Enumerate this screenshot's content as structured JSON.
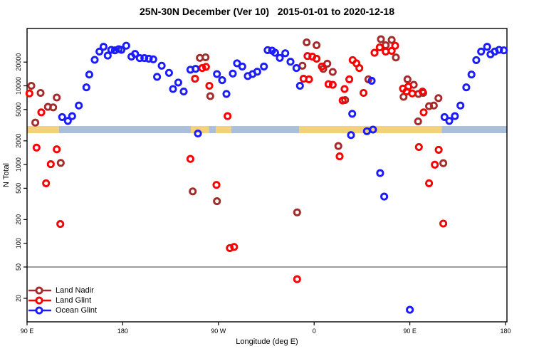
{
  "title": "25N-30N December (Ver 10)   2015-01-01 to 2020-12-18",
  "chart_data": {
    "type": "scatter",
    "title": "25N-30N December (Ver 10)   2015-01-01 to 2020-12-18",
    "xlabel": "Longitude (deg E)",
    "ylabel": "N Total",
    "x_axis": {
      "range_deg_continuous": [
        90,
        541
      ],
      "ticks": [
        {
          "lon": 90,
          "label": "90 E"
        },
        {
          "lon": 180,
          "label": "180"
        },
        {
          "lon": 270,
          "label": "90 W"
        },
        {
          "lon": 360,
          "label": "0"
        },
        {
          "lon": 450,
          "label": "90 E"
        },
        {
          "lon": 540,
          "label": "180"
        }
      ]
    },
    "y_axis": {
      "scale": "log10",
      "ticks": [
        20000,
        10000,
        5000,
        2000,
        1000,
        500,
        200,
        100,
        50,
        20
      ],
      "range": [
        10,
        53000
      ]
    },
    "grid": false,
    "legend_position": "bottom-left",
    "reference_line_n": 50,
    "reference_line_color": "#8f8f8f",
    "surface_band": {
      "comment": "land/ocean strip drawn across plot near N=2500-3100",
      "n_top": 3080,
      "n_bottom": 2500,
      "land_color": "#f2d07c",
      "ocean_color": "#a9bfd9",
      "segments": [
        {
          "type": "land",
          "lon_start": 90,
          "lon_end": 120
        },
        {
          "type": "ocean",
          "lon_start": 120,
          "lon_end": 244
        },
        {
          "type": "land",
          "lon_start": 244,
          "lon_end": 261
        },
        {
          "type": "ocean",
          "lon_start": 261,
          "lon_end": 267.5
        },
        {
          "type": "land",
          "lon_start": 267.5,
          "lon_end": 282
        },
        {
          "type": "ocean",
          "lon_start": 282,
          "lon_end": 346
        },
        {
          "type": "land",
          "lon_start": 346,
          "lon_end": 480
        },
        {
          "type": "ocean",
          "lon_start": 480,
          "lon_end": 541
        }
      ]
    },
    "series": [
      {
        "name": "Land Nadir",
        "color": "#A52A2A",
        "points": [
          [
            94.0,
            10000
          ],
          [
            102.7,
            8120
          ],
          [
            117.9,
            7090
          ],
          [
            109.6,
            5400
          ],
          [
            114.6,
            5320
          ],
          [
            97.8,
            3410
          ],
          [
            121.7,
            1050
          ],
          [
            252.5,
            22600
          ],
          [
            257.9,
            23000
          ],
          [
            262.3,
            7390
          ],
          [
            245.8,
            456
          ],
          [
            268.6,
            342
          ],
          [
            349.0,
            18000
          ],
          [
            353.0,
            35600
          ],
          [
            362.3,
            32800
          ],
          [
            368.6,
            16400
          ],
          [
            372.4,
            19100
          ],
          [
            377.5,
            15000
          ],
          [
            389.1,
            6600
          ],
          [
            382.8,
            1720
          ],
          [
            344.0,
            247
          ],
          [
            411.0,
            12100
          ],
          [
            422.8,
            39000
          ],
          [
            432.9,
            38200
          ],
          [
            427.3,
            32800
          ],
          [
            436.9,
            22900
          ],
          [
            447.8,
            12100
          ],
          [
            444.1,
            7240
          ],
          [
            453.7,
            10300
          ],
          [
            458.1,
            7890
          ],
          [
            462.6,
            8120
          ],
          [
            468.1,
            5510
          ],
          [
            472.6,
            5620
          ],
          [
            476.9,
            6980
          ],
          [
            457.8,
            3530
          ],
          [
            481.5,
            1040
          ]
        ]
      },
      {
        "name": "Land Glint",
        "color": "#fb0000",
        "points": [
          [
            92.2,
            8000
          ],
          [
            103.4,
            4600
          ],
          [
            98.9,
            1640
          ],
          [
            117.9,
            1560
          ],
          [
            112.3,
            1010
          ],
          [
            107.9,
            578
          ],
          [
            121.3,
            176
          ],
          [
            248.0,
            12300
          ],
          [
            254.7,
            16800
          ],
          [
            258.3,
            17400
          ],
          [
            261.4,
            10000
          ],
          [
            278.6,
            4120
          ],
          [
            243.6,
            1180
          ],
          [
            268.1,
            551
          ],
          [
            280.7,
            87
          ],
          [
            284.7,
            90
          ],
          [
            350.0,
            12300
          ],
          [
            355.2,
            12100
          ],
          [
            353.8,
            23900
          ],
          [
            358.3,
            23500
          ],
          [
            362.3,
            22100
          ],
          [
            367.2,
            17600
          ],
          [
            373.5,
            10500
          ],
          [
            377.5,
            10300
          ],
          [
            388.6,
            9100
          ],
          [
            386.8,
            6510
          ],
          [
            393.1,
            12100
          ],
          [
            396.2,
            21200
          ],
          [
            399.8,
            19300
          ],
          [
            402.5,
            16800
          ],
          [
            406.5,
            8120
          ],
          [
            384.0,
            1270
          ],
          [
            344.0,
            35
          ],
          [
            421.7,
            30700
          ],
          [
            427.3,
            27200
          ],
          [
            416.8,
            26300
          ],
          [
            432.9,
            27800
          ],
          [
            436.2,
            32300
          ],
          [
            443.6,
            9230
          ],
          [
            448.5,
            9760
          ],
          [
            446.9,
            8470
          ],
          [
            452.3,
            8000
          ],
          [
            461.9,
            8470
          ],
          [
            463.0,
            4600
          ],
          [
            458.5,
            1670
          ],
          [
            477.1,
            1540
          ],
          [
            473.5,
            995
          ],
          [
            468.1,
            578
          ],
          [
            481.5,
            178
          ]
        ]
      },
      {
        "name": "Ocean Glint",
        "color": "#1b1bff",
        "points": [
          [
            145.8,
            9550
          ],
          [
            138.7,
            5620
          ],
          [
            123.0,
            4010
          ],
          [
            128.4,
            3580
          ],
          [
            132.4,
            4120
          ],
          [
            148.5,
            13900
          ],
          [
            153.6,
            21400
          ],
          [
            158.1,
            27200
          ],
          [
            161.9,
            31300
          ],
          [
            165.9,
            24200
          ],
          [
            169.2,
            28600
          ],
          [
            172.6,
            28200
          ],
          [
            176.2,
            29200
          ],
          [
            178.8,
            28600
          ],
          [
            183.3,
            32300
          ],
          [
            188.2,
            23500
          ],
          [
            191.6,
            25400
          ],
          [
            196.0,
            22500
          ],
          [
            200.3,
            22500
          ],
          [
            204.5,
            22100
          ],
          [
            208.7,
            21700
          ],
          [
            216.6,
            18000
          ],
          [
            212.3,
            13000
          ],
          [
            223.5,
            14600
          ],
          [
            227.3,
            9100
          ],
          [
            232.2,
            11000
          ],
          [
            237.3,
            8470
          ],
          [
            243.6,
            16000
          ],
          [
            248.5,
            16400
          ],
          [
            250.7,
            2480
          ],
          [
            268.6,
            14100
          ],
          [
            273.5,
            11800
          ],
          [
            277.5,
            7890
          ],
          [
            283.5,
            14300
          ],
          [
            287.5,
            19300
          ],
          [
            292.4,
            17600
          ],
          [
            297.6,
            13300
          ],
          [
            302.1,
            14100
          ],
          [
            306.5,
            15100
          ],
          [
            312.8,
            17600
          ],
          [
            316.3,
            28400
          ],
          [
            320.4,
            28000
          ],
          [
            323.3,
            26300
          ],
          [
            327.7,
            22600
          ],
          [
            332.9,
            25900
          ],
          [
            337.8,
            20200
          ],
          [
            343.3,
            16800
          ],
          [
            346.7,
            10000
          ],
          [
            395.8,
            4410
          ],
          [
            394.7,
            2370
          ],
          [
            409.6,
            2650
          ],
          [
            415.4,
            2780
          ],
          [
            414.1,
            11600
          ],
          [
            422.1,
            779
          ],
          [
            425.9,
            392
          ],
          [
            450.0,
            14.3
          ],
          [
            482.6,
            4010
          ],
          [
            487.1,
            3580
          ],
          [
            492.4,
            4120
          ],
          [
            497.6,
            5620
          ],
          [
            503.1,
            9550
          ],
          [
            508.0,
            13900
          ],
          [
            512.5,
            21200
          ],
          [
            517.0,
            27200
          ],
          [
            522.7,
            31300
          ],
          [
            525.9,
            25100
          ],
          [
            529.9,
            27200
          ],
          [
            533.9,
            28600
          ],
          [
            538.4,
            28200
          ]
        ]
      }
    ]
  }
}
